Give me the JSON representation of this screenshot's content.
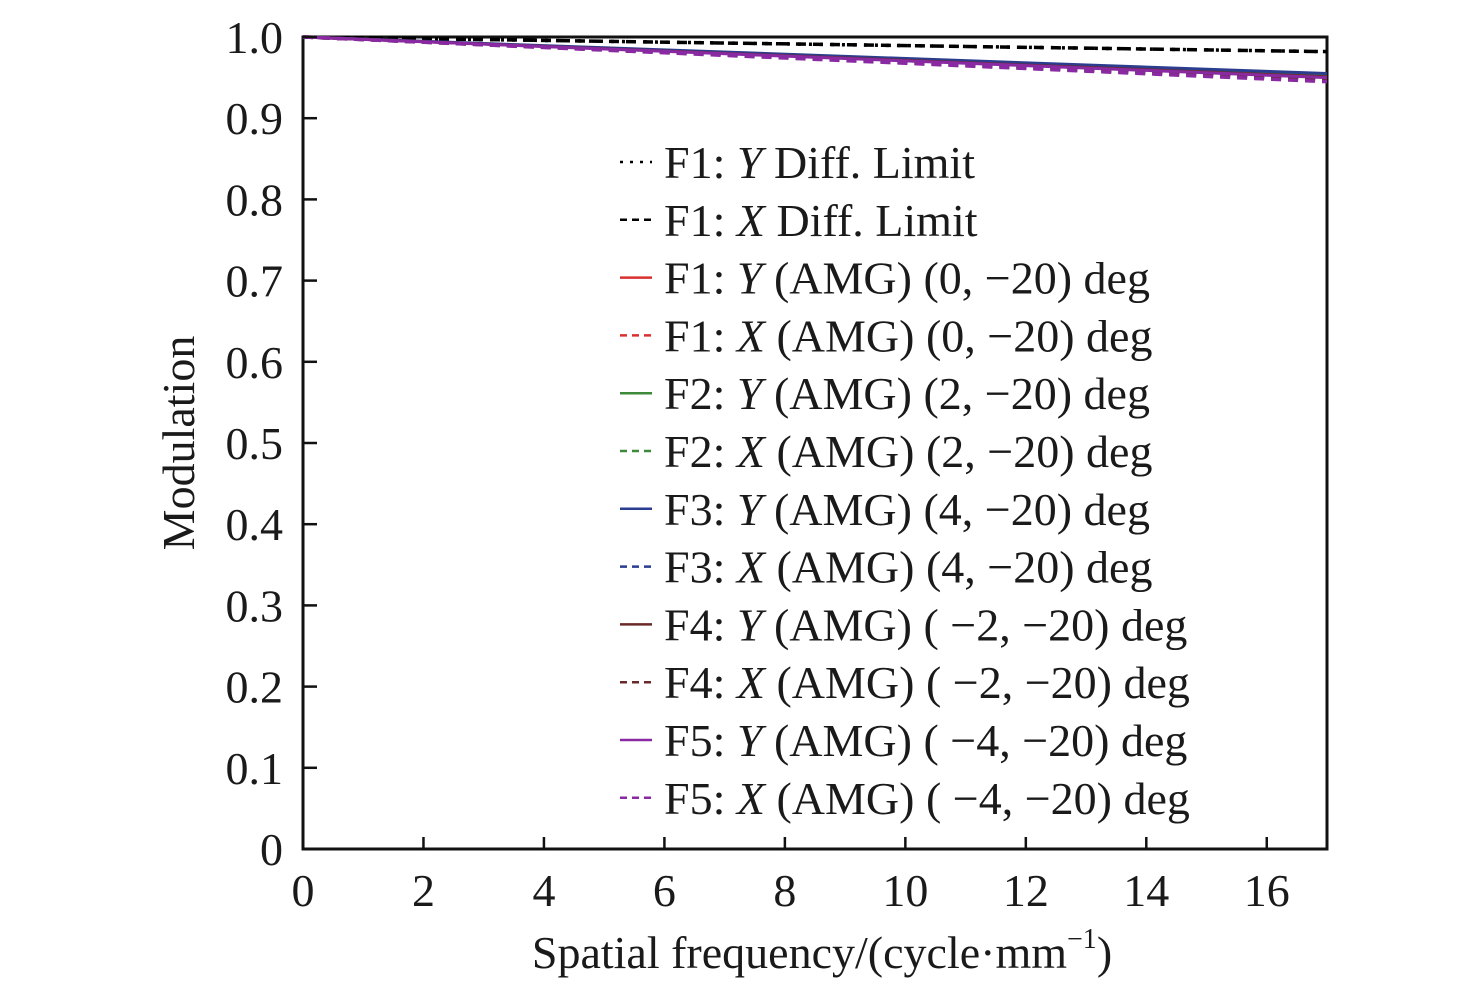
{
  "chart_data": {
    "type": "line",
    "title": "",
    "xlabel": "Spatial frequency/(cycle·mm",
    "xlabel_superscript": "−1",
    "xlabel_suffix": ")",
    "ylabel": "Modulation",
    "xlim": [
      0,
      17
    ],
    "ylim": [
      0,
      1.0
    ],
    "x_ticks": [
      0,
      2,
      4,
      6,
      8,
      10,
      12,
      14,
      16
    ],
    "x_tick_labels": [
      "0",
      "2",
      "4",
      "6",
      "8",
      "10",
      "12",
      "14",
      "16"
    ],
    "y_ticks": [
      0,
      0.1,
      0.2,
      0.3,
      0.4,
      0.5,
      0.6,
      0.7,
      0.8,
      0.9,
      1.0
    ],
    "y_tick_labels": [
      "0",
      "0.1",
      "0.2",
      "0.3",
      "0.4",
      "0.5",
      "0.6",
      "0.7",
      "0.8",
      "0.9",
      "1.0"
    ],
    "grid": false,
    "legend_position": "center-right",
    "series": [
      {
        "prefix": "F1: ",
        "axis": "Y",
        "suffix": " Diff. Limit",
        "color": "#000000",
        "style": "dotted",
        "x": [
          0,
          17
        ],
        "y": [
          1.0,
          0.982
        ]
      },
      {
        "prefix": "F1: ",
        "axis": "X",
        "suffix": " Diff. Limit",
        "color": "#000000",
        "style": "dashed",
        "x": [
          0,
          17
        ],
        "y": [
          1.0,
          0.982
        ]
      },
      {
        "prefix": "F1: ",
        "axis": "Y",
        "suffix": " (AMG) (0, −20) deg",
        "color": "#d9302f",
        "style": "solid",
        "x": [
          0,
          17
        ],
        "y": [
          1.0,
          0.952
        ]
      },
      {
        "prefix": "F1: ",
        "axis": "X",
        "suffix": " (AMG) (0, −20) deg",
        "color": "#d9302f",
        "style": "dashed",
        "x": [
          0,
          17
        ],
        "y": [
          1.0,
          0.948
        ]
      },
      {
        "prefix": "F2: ",
        "axis": "Y",
        "suffix": " (AMG) (2, −20) deg",
        "color": "#3f8a3a",
        "style": "solid",
        "x": [
          0,
          17
        ],
        "y": [
          1.0,
          0.952
        ]
      },
      {
        "prefix": "F2: ",
        "axis": "X",
        "suffix": " (AMG) (2, −20) deg",
        "color": "#3f8a3a",
        "style": "dashed",
        "x": [
          0,
          17
        ],
        "y": [
          1.0,
          0.947
        ]
      },
      {
        "prefix": "F3: ",
        "axis": "Y",
        "suffix": " (AMG) (4, −20) deg",
        "color": "#2a3d8f",
        "style": "solid",
        "x": [
          0,
          17
        ],
        "y": [
          1.0,
          0.955
        ]
      },
      {
        "prefix": "F3: ",
        "axis": "X",
        "suffix": " (AMG) (4, −20) deg",
        "color": "#2a3d8f",
        "style": "dashed",
        "x": [
          0,
          17
        ],
        "y": [
          1.0,
          0.949
        ]
      },
      {
        "prefix": "F4: ",
        "axis": "Y",
        "suffix": " (AMG) ( −2, −20) deg",
        "color": "#6b2a2a",
        "style": "solid",
        "x": [
          0,
          17
        ],
        "y": [
          1.0,
          0.951
        ]
      },
      {
        "prefix": "F4: ",
        "axis": "X",
        "suffix": " (AMG) ( −2, −20) deg",
        "color": "#6b2a2a",
        "style": "dashed",
        "x": [
          0,
          17
        ],
        "y": [
          1.0,
          0.946
        ]
      },
      {
        "prefix": "F5: ",
        "axis": "Y",
        "suffix": " (AMG) ( −4, −20) deg",
        "color": "#8a2aa3",
        "style": "solid",
        "x": [
          0,
          17
        ],
        "y": [
          1.0,
          0.95
        ]
      },
      {
        "prefix": "F5: ",
        "axis": "X",
        "suffix": " (AMG) ( −4, −20) deg",
        "color": "#8a2aa3",
        "style": "dashed",
        "x": [
          0,
          17
        ],
        "y": [
          1.0,
          0.945
        ]
      }
    ]
  }
}
